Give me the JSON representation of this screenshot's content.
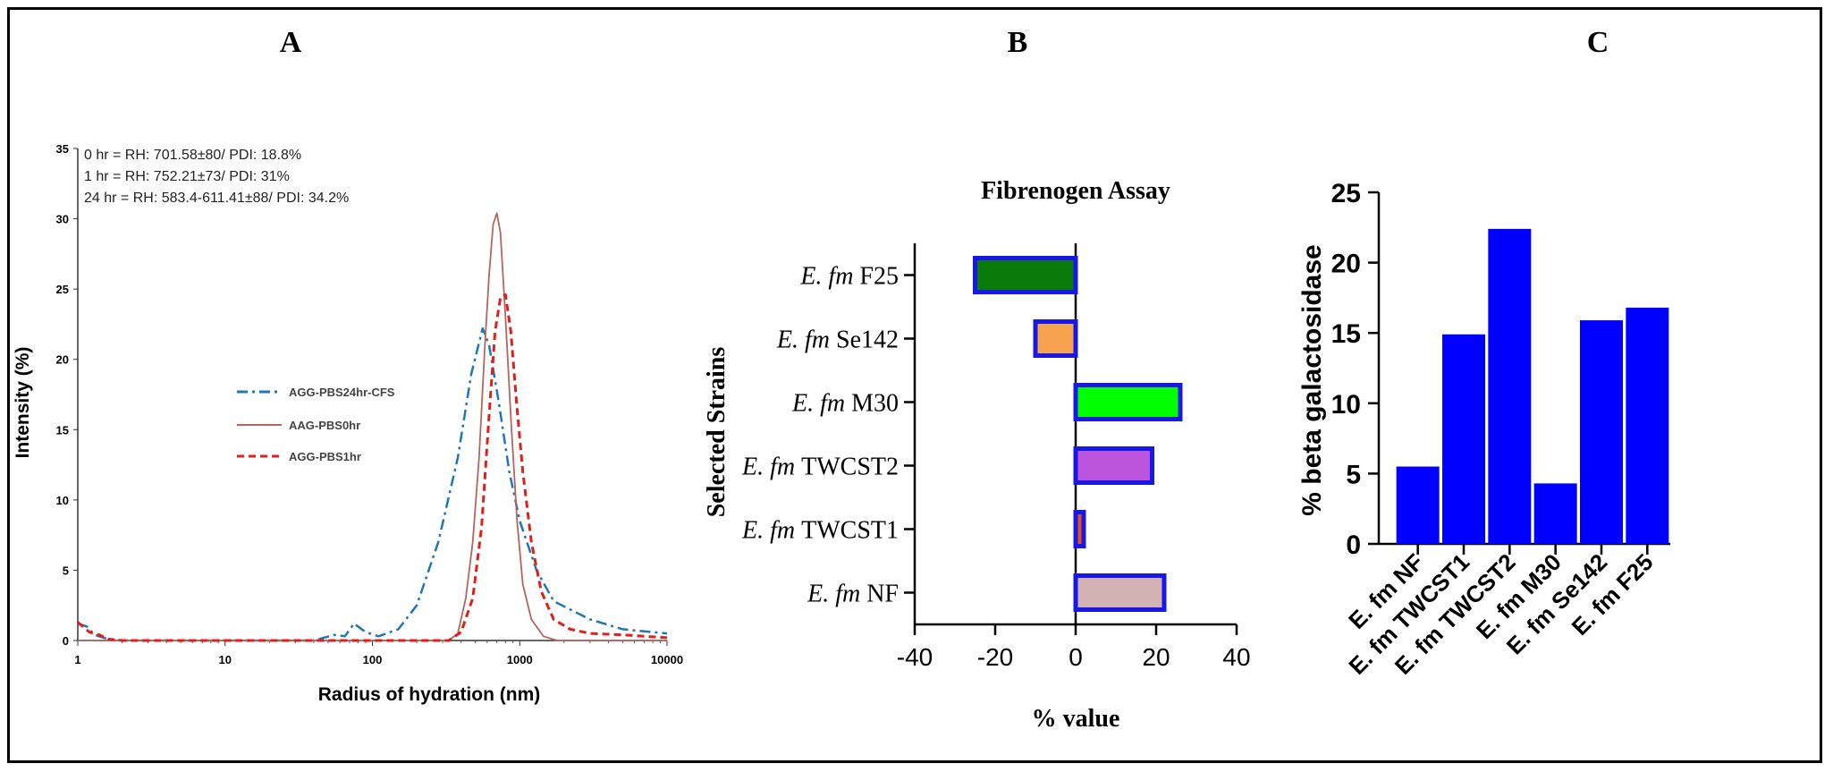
{
  "panels": {
    "A": "A",
    "B": "B",
    "C": "C"
  },
  "colors": {
    "blue_dashdot": "#1f77b4",
    "brown_solid": "#b5655e",
    "red_dashed": "#e01e1e",
    "bar_blue": "#0000ff",
    "bar_edge": "#1818e6"
  },
  "chart_data": [
    {
      "type": "line",
      "panel": "A",
      "xlabel": "Radius of hydration (nm)",
      "ylabel": "Intensity (%)",
      "xscale": "log",
      "xlim": [
        1,
        10000
      ],
      "ylim": [
        0,
        35
      ],
      "xticks": [
        "1",
        "10",
        "100",
        "1000",
        "10000"
      ],
      "yticks": [
        "0",
        "5",
        "10",
        "15",
        "20",
        "25",
        "30",
        "35"
      ],
      "annotations": [
        "0 hr = RH: 701.58±80/ PDI: 18.8%",
        "1 hr = RH: 752.21±73/ PDI: 31%",
        "24 hr = RH: 583.4-611.41±88/ PDI: 34.2%"
      ],
      "legend_position": "center-left",
      "series": [
        {
          "name": "AGG-PBS24hr-CFS",
          "style": "dashdot",
          "points": [
            [
              1,
              1.2
            ],
            [
              1.15,
              1.0
            ],
            [
              1.3,
              0.4
            ],
            [
              1.6,
              0.1
            ],
            [
              2,
              0
            ],
            [
              40,
              0
            ],
            [
              55,
              0.4
            ],
            [
              65,
              0.3
            ],
            [
              75,
              1.2
            ],
            [
              90,
              0.6
            ],
            [
              110,
              0.3
            ],
            [
              150,
              0.8
            ],
            [
              200,
              2.5
            ],
            [
              280,
              7
            ],
            [
              380,
              13
            ],
            [
              470,
              19
            ],
            [
              560,
              22.2
            ],
            [
              620,
              21
            ],
            [
              720,
              17
            ],
            [
              850,
              12
            ],
            [
              1000,
              8.5
            ],
            [
              1300,
              5
            ],
            [
              1700,
              2.8
            ],
            [
              2200,
              2.2
            ],
            [
              3000,
              1.5
            ],
            [
              5000,
              0.8
            ],
            [
              10000,
              0.5
            ]
          ]
        },
        {
          "name": "AAG-PBS0hr",
          "style": "solid",
          "points": [
            [
              1,
              0
            ],
            [
              330,
              0
            ],
            [
              380,
              0.5
            ],
            [
              430,
              3
            ],
            [
              480,
              7
            ],
            [
              530,
              13
            ],
            [
              580,
              21
            ],
            [
              620,
              26
            ],
            [
              660,
              29.6
            ],
            [
              700,
              30.4
            ],
            [
              740,
              29
            ],
            [
              800,
              23
            ],
            [
              880,
              15
            ],
            [
              960,
              8.5
            ],
            [
              1050,
              4
            ],
            [
              1200,
              1.5
            ],
            [
              1450,
              0.3
            ],
            [
              1800,
              0
            ],
            [
              10000,
              0
            ]
          ]
        },
        {
          "name": "AGG-PBS1hr",
          "style": "dashed",
          "points": [
            [
              1,
              1.3
            ],
            [
              1.2,
              0.6
            ],
            [
              1.4,
              0.4
            ],
            [
              1.6,
              0.1
            ],
            [
              2,
              0
            ],
            [
              330,
              0
            ],
            [
              400,
              0.6
            ],
            [
              480,
              3
            ],
            [
              550,
              8
            ],
            [
              620,
              16
            ],
            [
              680,
              22
            ],
            [
              740,
              24.4
            ],
            [
              800,
              24.6
            ],
            [
              870,
              22
            ],
            [
              950,
              17
            ],
            [
              1050,
              12
            ],
            [
              1200,
              7
            ],
            [
              1400,
              3.5
            ],
            [
              1700,
              1.5
            ],
            [
              2200,
              0.8
            ],
            [
              3000,
              0.5
            ],
            [
              5000,
              0.4
            ],
            [
              10000,
              0.2
            ]
          ]
        }
      ]
    },
    {
      "type": "bar",
      "panel": "B",
      "orientation": "horizontal",
      "title": "Fibrenogen Assay",
      "xlabel": "% value",
      "ylabel": "Selected Strains",
      "xlim": [
        -40,
        40
      ],
      "xticks": [
        "-40",
        "-20",
        "0",
        "20",
        "40"
      ],
      "categories": [
        {
          "italic": "E. fm",
          "name": "F25"
        },
        {
          "italic": "E. fm",
          "name": "Se142"
        },
        {
          "italic": "E. fm",
          "name": "M30"
        },
        {
          "italic": "E. fm",
          "name": "TWCST2"
        },
        {
          "italic": "E. fm",
          "name": "TWCST1"
        },
        {
          "italic": "E. fm",
          "name": "NF"
        }
      ],
      "values": [
        -25,
        -10,
        26,
        19,
        2,
        22
      ],
      "fills": [
        "#0a7a0a",
        "#f6a24e",
        "#00ff00",
        "#bb55dd",
        "#e8501a",
        "#d2b2b2"
      ]
    },
    {
      "type": "bar",
      "panel": "C",
      "orientation": "vertical",
      "ylabel": "% beta galactosidase",
      "ylim": [
        0,
        25
      ],
      "yticks": [
        "0",
        "5",
        "10",
        "15",
        "20",
        "25"
      ],
      "categories": [
        "E. fm NF",
        "E. fm TWCST1",
        "E. fm TWCST2",
        "E. fm M30",
        "E. fm Se142",
        "E. fm F25"
      ],
      "values": [
        5.5,
        14.9,
        22.4,
        4.3,
        15.9,
        16.8
      ]
    }
  ]
}
